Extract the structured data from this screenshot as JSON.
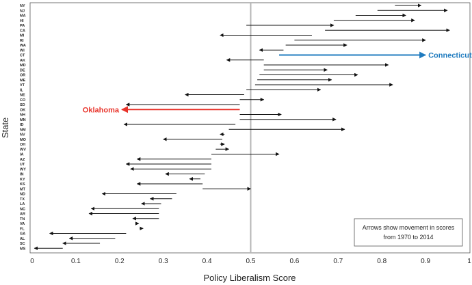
{
  "chart_data": {
    "type": "arrow",
    "xlabel": "Policy Liberalism Score",
    "ylabel": "State",
    "xlim": [
      0,
      1
    ],
    "xticks": [
      "0",
      "0.1",
      "0.2",
      "0.3",
      "0.4",
      "0.5",
      "0.6",
      "0.7",
      "0.8",
      "0.9",
      "1"
    ],
    "reference_line": 0.5,
    "note": [
      "Arrows show movement in scores",
      "from 1970 to 2014"
    ],
    "highlight_colors": {
      "Connecticut": "#1f7bbf",
      "Oklahoma": "#e8332a",
      "default": "#111111"
    },
    "callouts": [
      {
        "state": "CT",
        "label": "Connecticut"
      },
      {
        "state": "OK",
        "label": "Oklahoma"
      }
    ],
    "series": [
      {
        "state": "NY",
        "start": 0.83,
        "end": 0.89
      },
      {
        "state": "NJ",
        "start": 0.79,
        "end": 0.95
      },
      {
        "state": "MA",
        "start": 0.74,
        "end": 0.855
      },
      {
        "state": "HI",
        "start": 0.69,
        "end": 0.875
      },
      {
        "state": "PA",
        "start": 0.49,
        "end": 0.69
      },
      {
        "state": "CA",
        "start": 0.67,
        "end": 0.955
      },
      {
        "state": "MI",
        "start": 0.64,
        "end": 0.43
      },
      {
        "state": "RI",
        "start": 0.6,
        "end": 0.9
      },
      {
        "state": "WA",
        "start": 0.58,
        "end": 0.72
      },
      {
        "state": "WI",
        "start": 0.575,
        "end": 0.52
      },
      {
        "state": "CT",
        "start": 0.565,
        "end": 0.9
      },
      {
        "state": "AK",
        "start": 0.53,
        "end": 0.445
      },
      {
        "state": "MD",
        "start": 0.53,
        "end": 0.815
      },
      {
        "state": "DE",
        "start": 0.53,
        "end": 0.675
      },
      {
        "state": "OR",
        "start": 0.52,
        "end": 0.745
      },
      {
        "state": "ME",
        "start": 0.515,
        "end": 0.685
      },
      {
        "state": "VT",
        "start": 0.51,
        "end": 0.825
      },
      {
        "state": "IL",
        "start": 0.49,
        "end": 0.66
      },
      {
        "state": "NE",
        "start": 0.485,
        "end": 0.35
      },
      {
        "state": "CO",
        "start": 0.475,
        "end": 0.53
      },
      {
        "state": "SD",
        "start": 0.475,
        "end": 0.215
      },
      {
        "state": "OK",
        "start": 0.475,
        "end": 0.205
      },
      {
        "state": "NH",
        "start": 0.475,
        "end": 0.57
      },
      {
        "state": "MN",
        "start": 0.475,
        "end": 0.695
      },
      {
        "state": "ID",
        "start": 0.465,
        "end": 0.21
      },
      {
        "state": "NM",
        "start": 0.45,
        "end": 0.715
      },
      {
        "state": "NV",
        "start": 0.44,
        "end": 0.43
      },
      {
        "state": "MO",
        "start": 0.435,
        "end": 0.3
      },
      {
        "state": "OH",
        "start": 0.43,
        "end": 0.44
      },
      {
        "state": "WV",
        "start": 0.42,
        "end": 0.45
      },
      {
        "state": "IA",
        "start": 0.41,
        "end": 0.565
      },
      {
        "state": "AZ",
        "start": 0.41,
        "end": 0.24
      },
      {
        "state": "UT",
        "start": 0.41,
        "end": 0.215
      },
      {
        "state": "WY",
        "start": 0.41,
        "end": 0.225
      },
      {
        "state": "IN",
        "start": 0.395,
        "end": 0.305
      },
      {
        "state": "KY",
        "start": 0.385,
        "end": 0.36
      },
      {
        "state": "KS",
        "start": 0.39,
        "end": 0.24
      },
      {
        "state": "MT",
        "start": 0.39,
        "end": 0.5
      },
      {
        "state": "ND",
        "start": 0.33,
        "end": 0.16
      },
      {
        "state": "TX",
        "start": 0.32,
        "end": 0.27
      },
      {
        "state": "LA",
        "start": 0.295,
        "end": 0.25
      },
      {
        "state": "NC",
        "start": 0.29,
        "end": 0.135
      },
      {
        "state": "AR",
        "start": 0.29,
        "end": 0.13
      },
      {
        "state": "TN",
        "start": 0.29,
        "end": 0.23
      },
      {
        "state": "VA",
        "start": 0.24,
        "end": 0.24
      },
      {
        "state": "FL",
        "start": 0.25,
        "end": 0.25
      },
      {
        "state": "GA",
        "start": 0.215,
        "end": 0.04
      },
      {
        "state": "AL",
        "start": 0.19,
        "end": 0.085
      },
      {
        "state": "SC",
        "start": 0.155,
        "end": 0.07
      },
      {
        "state": "MS",
        "start": 0.07,
        "end": 0.005
      }
    ]
  }
}
